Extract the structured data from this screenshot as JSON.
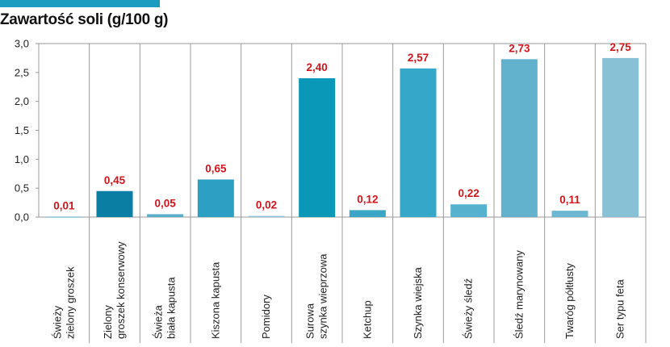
{
  "colors": {
    "accent_bar": "#1a9bc0",
    "data_label": "#d4141b",
    "grid": "#9a9a9a"
  },
  "chart_data": {
    "type": "bar",
    "title": "Zawartość soli (g/100 g)",
    "xlabel": "",
    "ylabel": "",
    "ylim": [
      0,
      3.0
    ],
    "yticks": [
      "0,0",
      "0,5",
      "1,0",
      "1,5",
      "2,0",
      "2,5",
      "3,0"
    ],
    "grid": "vertical separators between categories",
    "categories": [
      [
        "Świeży",
        "zielony groszek"
      ],
      [
        "Zielony",
        "groszek konserwowy"
      ],
      [
        "Świeża",
        "biała kapusta"
      ],
      [
        "Kiszona kapusta"
      ],
      [
        "Pomidory"
      ],
      [
        "Surowa",
        "szynka wieprzowa"
      ],
      [
        "Ketchup"
      ],
      [
        "Szynka wiejska"
      ],
      [
        "Świeży śledź"
      ],
      [
        "Śledź marynowany"
      ],
      [
        "Twaróg półtłusty"
      ],
      [
        "Ser typu feta"
      ]
    ],
    "values": [
      0.01,
      0.45,
      0.05,
      0.65,
      0.02,
      2.4,
      0.12,
      2.57,
      0.22,
      2.73,
      0.11,
      2.75
    ],
    "value_labels": [
      "0,01",
      "0,45",
      "0,05",
      "0,65",
      "0,02",
      "2,40",
      "0,12",
      "2,57",
      "0,22",
      "2,73",
      "0,11",
      "2,75"
    ],
    "bar_colors": [
      "#8cc4d8",
      "#0b7ea3",
      "#5aaec9",
      "#2c9fc2",
      "#8cc4d8",
      "#0a98b8",
      "#3aa5c5",
      "#35a7c9",
      "#55b1cd",
      "#62b2cd",
      "#6cb8d2",
      "#88c0d6"
    ]
  }
}
